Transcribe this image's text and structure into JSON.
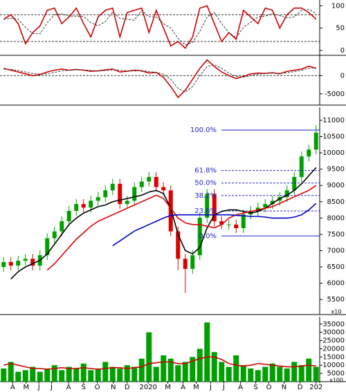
{
  "chart_data": [
    {
      "type": "line",
      "xlim": [
        -0.5,
        43.5
      ],
      "ylim": [
        -8,
        110
      ],
      "yticks": [
        0,
        50,
        100
      ],
      "hlines": [
        80,
        20
      ],
      "series": [
        {
          "color": "#cc0000",
          "values": [
            70,
            80,
            60,
            15,
            40,
            55,
            90,
            95,
            60,
            75,
            95,
            60,
            30,
            75,
            90,
            95,
            30,
            85,
            90,
            95,
            40,
            90,
            50,
            10,
            20,
            5,
            30,
            95,
            100,
            60,
            20,
            40,
            25,
            90,
            75,
            60,
            95,
            90,
            50,
            80,
            95,
            95,
            85,
            70
          ]
        },
        {
          "color": "#333333",
          "dash": true,
          "values": [
            70,
            72,
            70,
            52,
            38,
            37,
            62,
            80,
            82,
            77,
            77,
            76,
            62,
            55,
            65,
            86,
            72,
            70,
            68,
            90,
            75,
            75,
            60,
            50,
            27,
            12,
            18,
            43,
            75,
            85,
            60,
            40,
            28,
            52,
            63,
            75,
            77,
            82,
            78,
            73,
            75,
            90,
            92,
            83
          ]
        }
      ]
    },
    {
      "type": "line",
      "xlim": [
        -0.5,
        43.5
      ],
      "ylim": [
        -7700,
        5200
      ],
      "yticks": [
        -5000,
        0
      ],
      "hlines": [
        0
      ],
      "series": [
        {
          "color": "#cc0000",
          "values": [
            2000,
            1500,
            1000,
            500,
            0,
            300,
            1000,
            1500,
            1800,
            1500,
            1700,
            1500,
            1200,
            1300,
            1600,
            1800,
            1000,
            1200,
            1500,
            1300,
            700,
            900,
            -500,
            -3000,
            -6000,
            -4000,
            -1000,
            2000,
            4300,
            2500,
            1000,
            0,
            -800,
            -200,
            500,
            700,
            600,
            800,
            500,
            1200,
            1500,
            1800,
            2600,
            2000
          ]
        },
        {
          "color": "#333333",
          "dash": true,
          "values": [
            1800,
            1700,
            1400,
            1000,
            600,
            400,
            500,
            900,
            1300,
            1500,
            1600,
            1600,
            1400,
            1300,
            1400,
            1600,
            1500,
            1300,
            1300,
            1400,
            1100,
            900,
            400,
            -1000,
            -3500,
            -4500,
            -3000,
            0,
            2500,
            3000,
            2000,
            700,
            -200,
            -400,
            0,
            400,
            600,
            700,
            600,
            800,
            1100,
            1500,
            2000,
            2200
          ]
        }
      ]
    },
    {
      "type": "candlestick",
      "xlim": [
        -0.5,
        43.5
      ],
      "ylim": [
        5080,
        11360
      ],
      "yticks": [
        5500,
        6000,
        6500,
        7000,
        7500,
        8000,
        8500,
        9000,
        9500,
        10000,
        10500,
        11000
      ],
      "y_unit": "x10",
      "up_color": "#00a000",
      "down_color": "#dd0000",
      "open": [
        6500,
        6650,
        6540,
        6690,
        6750,
        6540,
        6860,
        7380,
        7590,
        7900,
        8220,
        8430,
        8320,
        8530,
        8640,
        8850,
        9050,
        8430,
        8530,
        8950,
        9120,
        9260,
        8950,
        8850,
        7590,
        6750,
        6440,
        6860,
        8010,
        8740,
        7900,
        7800,
        7800,
        7690,
        8110,
        8220,
        8320,
        8430,
        8530,
        8640,
        8850,
        9260,
        9890,
        10100
      ],
      "high": [
        6800,
        6800,
        6840,
        6900,
        6900,
        7010,
        7530,
        7740,
        8050,
        8370,
        8580,
        8580,
        8680,
        8790,
        9000,
        9200,
        9200,
        8680,
        9100,
        9270,
        9410,
        9410,
        9100,
        9000,
        7740,
        6900,
        7010,
        8160,
        8890,
        8890,
        8050,
        7950,
        7950,
        8260,
        8370,
        8470,
        8580,
        8680,
        8790,
        9000,
        9410,
        10040,
        10250,
        10850
      ],
      "low": [
        6350,
        6390,
        6390,
        6540,
        6390,
        6390,
        6710,
        7230,
        7440,
        7750,
        8070,
        8170,
        8170,
        8380,
        8490,
        8700,
        8280,
        8280,
        8380,
        8800,
        8970,
        8800,
        8700,
        7440,
        6400,
        5700,
        6290,
        6710,
        7860,
        7750,
        7650,
        7650,
        7540,
        7540,
        7960,
        8070,
        8170,
        8280,
        8380,
        8490,
        8700,
        9110,
        9740,
        9950
      ],
      "close": [
        6650,
        6540,
        6690,
        6750,
        6540,
        6860,
        7380,
        7590,
        7900,
        8220,
        8430,
        8320,
        8530,
        8640,
        8850,
        9050,
        8430,
        8530,
        8950,
        9120,
        9260,
        8950,
        8850,
        7590,
        6750,
        6440,
        6860,
        8010,
        8740,
        7900,
        7800,
        7800,
        7690,
        8110,
        8220,
        8320,
        8430,
        8530,
        8640,
        8850,
        9260,
        9890,
        10100,
        10620
      ],
      "series": [
        {
          "color": "#000000",
          "values": [
            null,
            6130,
            6350,
            6500,
            6600,
            6700,
            6900,
            7200,
            7500,
            7800,
            8000,
            8150,
            8250,
            8350,
            8400,
            8500,
            8550,
            8600,
            8650,
            8700,
            8800,
            8850,
            8750,
            8300,
            7500,
            7000,
            6900,
            7100,
            7700,
            8100,
            8200,
            8250,
            8250,
            8200,
            8150,
            8200,
            8300,
            8450,
            8600,
            8700,
            8850,
            9050,
            9300,
            9550
          ]
        },
        {
          "color": "#dd0000",
          "values": [
            null,
            null,
            null,
            null,
            null,
            null,
            6400,
            6600,
            6850,
            7100,
            7350,
            7550,
            7750,
            7900,
            8000,
            8100,
            8200,
            8300,
            8400,
            8500,
            8600,
            8700,
            8600,
            8300,
            8000,
            7850,
            7800,
            7800,
            7750,
            7700,
            7800,
            8000,
            8100,
            8150,
            8200,
            8250,
            8300,
            8350,
            8450,
            8550,
            8650,
            8750,
            8850,
            9000
          ]
        },
        {
          "color": "#0000cc",
          "values": [
            null,
            null,
            null,
            null,
            null,
            null,
            null,
            null,
            null,
            null,
            null,
            null,
            null,
            null,
            null,
            7150,
            7300,
            7450,
            7600,
            7700,
            7800,
            7900,
            8000,
            8080,
            8100,
            8100,
            8100,
            8100,
            8100,
            8100,
            8100,
            8100,
            8080,
            8070,
            8050,
            8050,
            8030,
            8000,
            8000,
            8000,
            8030,
            8100,
            8250,
            8450
          ]
        }
      ],
      "fib": {
        "color": "#2222cc",
        "values": [
          10700,
          9459,
          9075,
          8692,
          8217,
          7450
        ],
        "labels": [
          "100.0%",
          "61.8%",
          "50.0%",
          "38.2%",
          "23.6%",
          "0.0%"
        ],
        "dashed": [
          false,
          true,
          true,
          true,
          true,
          false
        ]
      }
    },
    {
      "type": "bar",
      "xlim": [
        -0.5,
        43.5
      ],
      "ylim": [
        0,
        38700
      ],
      "yticks": [
        5000,
        10000,
        15000,
        20000,
        25000,
        30000,
        35000
      ],
      "y_unit": "x100",
      "color": "#00a000",
      "values": [
        8000,
        12000,
        6000,
        7000,
        9000,
        6000,
        8000,
        10000,
        7000,
        9000,
        8000,
        11000,
        7000,
        8000,
        12000,
        9000,
        8000,
        10000,
        9000,
        14000,
        30000,
        9000,
        16000,
        14000,
        10000,
        12000,
        15000,
        20000,
        36000,
        18000,
        12000,
        9000,
        16000,
        10000,
        8000,
        7000,
        9000,
        11000,
        9000,
        8000,
        12000,
        10000,
        14000,
        9000
      ],
      "series": [
        {
          "color": "#cc0000",
          "values": [
            10000,
            11000,
            10000,
            9000,
            8000,
            8000,
            7500,
            8000,
            8500,
            8000,
            8000,
            8500,
            8000,
            7500,
            8000,
            8500,
            8500,
            8000,
            8500,
            9000,
            11000,
            11500,
            12000,
            12000,
            11000,
            11000,
            12500,
            14000,
            15000,
            15000,
            13500,
            11000,
            10000,
            9500,
            10000,
            11000,
            10500,
            10000,
            9500,
            9000,
            9000,
            9500,
            10000,
            9500
          ]
        }
      ],
      "xticks": [
        {
          "value": 1.25,
          "label": "A"
        },
        {
          "value": 3.1,
          "label": "M"
        },
        {
          "value": 4.85,
          "label": "J"
        },
        {
          "value": 6.6,
          "label": "J"
        },
        {
          "value": 8.95,
          "label": "A"
        },
        {
          "value": 11,
          "label": "S"
        },
        {
          "value": 12.9,
          "label": "O"
        },
        {
          "value": 15.1,
          "label": "N"
        },
        {
          "value": 17,
          "label": "D"
        },
        {
          "value": 19.9,
          "label": "2020"
        },
        {
          "value": 22.6,
          "label": "M"
        },
        {
          "value": 24.7,
          "label": "A"
        },
        {
          "value": 26.5,
          "label": "M"
        },
        {
          "value": 28.5,
          "label": "J"
        },
        {
          "value": 30.3,
          "label": "J"
        },
        {
          "value": 32.6,
          "label": "A"
        },
        {
          "value": 34.7,
          "label": "S"
        },
        {
          "value": 36.5,
          "label": "O"
        },
        {
          "value": 38.6,
          "label": "N"
        },
        {
          "value": 40.8,
          "label": "D"
        },
        {
          "value": 43,
          "label": "202"
        }
      ]
    }
  ]
}
